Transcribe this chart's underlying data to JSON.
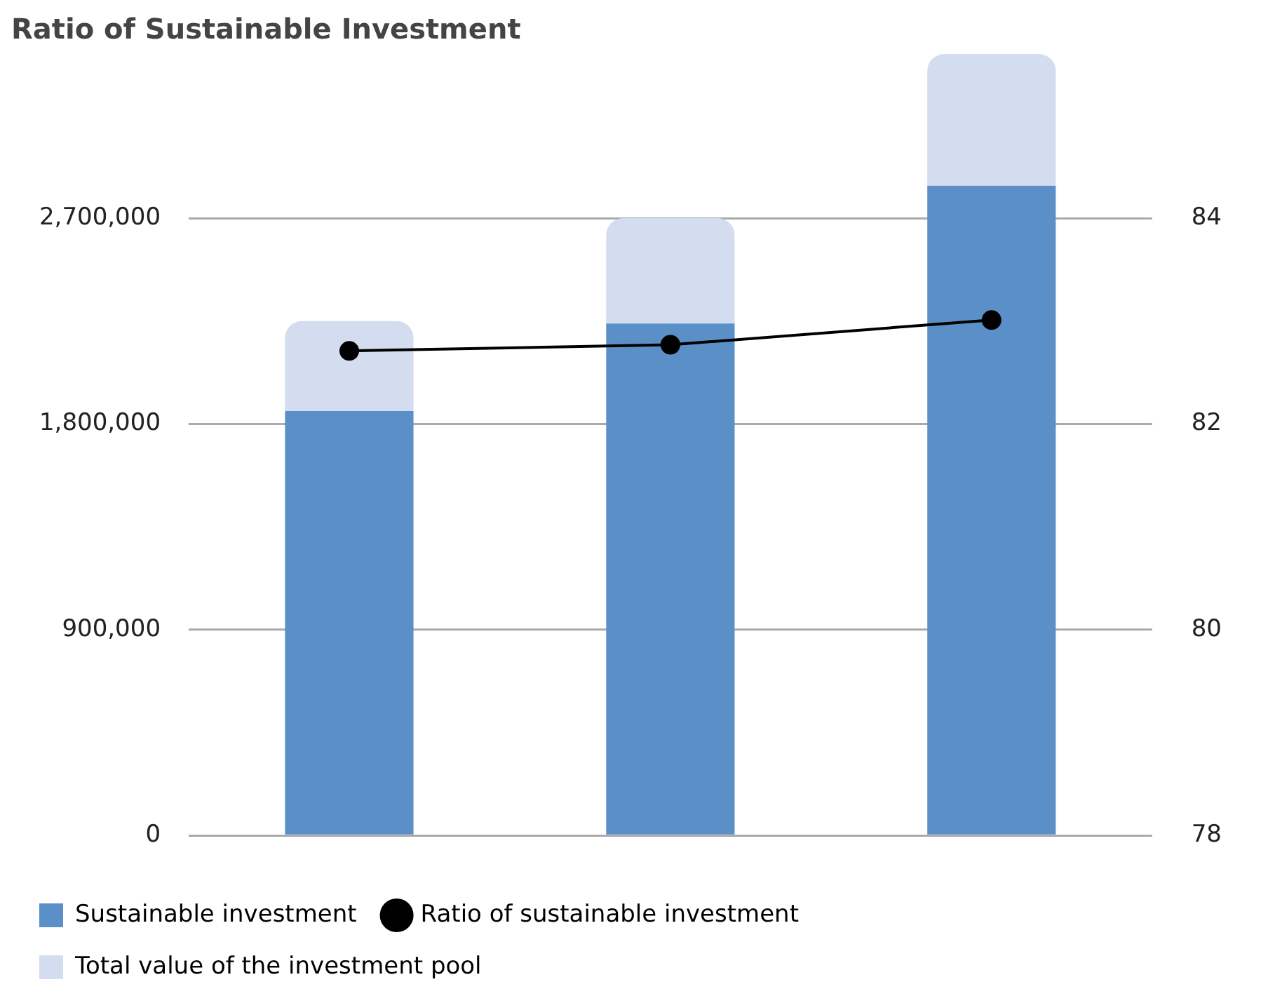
{
  "chart_data": {
    "type": "bar",
    "title": "Ratio of Sustainable Investment",
    "categories": [
      null,
      null,
      null
    ],
    "stacked": true,
    "series": [
      {
        "name": "Sustainable investment",
        "color": "#5b8fc7",
        "values": [
          1857000,
          2239000,
          2842000
        ]
      },
      {
        "name": "Ratio of sustainable investment",
        "type": "line",
        "axis": "y2",
        "color": "#000000",
        "values": [
          82.71,
          82.77,
          83.01
        ]
      },
      {
        "name": "Total value of the investment pool",
        "color": "#d4ddef",
        "values": [
          393000,
          461000,
          576000
        ]
      }
    ],
    "ylim": [
      0,
      3420000
    ],
    "yticks": [
      0,
      {
        "value": 900000,
        "label": "900,000"
      },
      {
        "value": 1800000,
        "label": "1,800,000"
      },
      {
        "value": 2700000,
        "label": "2,700,000"
      }
    ],
    "y2lim": [
      78,
      85.6
    ],
    "y2ticks": [
      78,
      80,
      82,
      84
    ],
    "grid": "y",
    "legend": "bottom",
    "marker": "circle",
    "line_style": "solid"
  }
}
